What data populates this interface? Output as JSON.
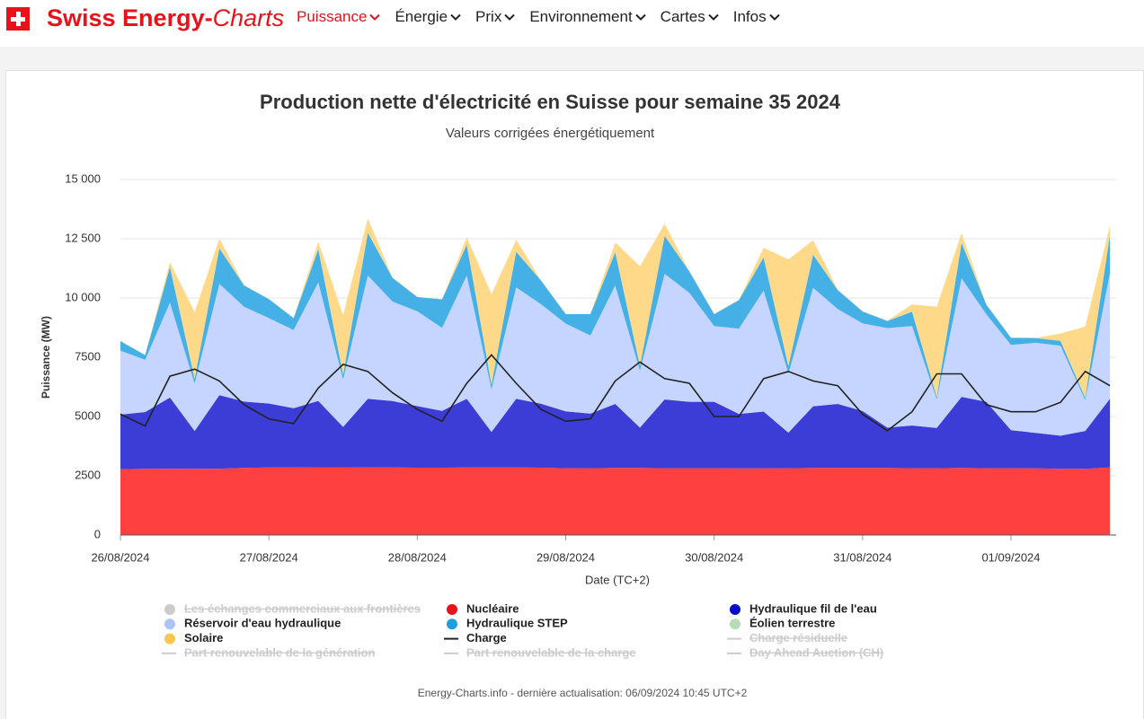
{
  "nav": {
    "brand_main": "Swiss Energy-",
    "brand_italic": "Charts",
    "items": [
      "Puissance",
      "Énergie",
      "Prix",
      "Environnement",
      "Cartes",
      "Infos"
    ],
    "active": 0
  },
  "chart_data": {
    "type": "stacked_area",
    "title": "Production nette d'électricité en Suisse pour semaine 35 2024",
    "subtitle": "Valeurs corrigées énergétiquement",
    "x_label": "Date (TC+2)",
    "y_label": "Puissance (MW)",
    "x": [
      0,
      4,
      8,
      12,
      16,
      20,
      24,
      28,
      32,
      36,
      40,
      44,
      48,
      52,
      56,
      60,
      64,
      68,
      72,
      76,
      80,
      84,
      88,
      92,
      96,
      100,
      104,
      108,
      112,
      116,
      120,
      124,
      128,
      132,
      136,
      140,
      144,
      148,
      152,
      156,
      160
    ],
    "xlim": [
      0,
      161
    ],
    "xticks": [
      {
        "value": 0,
        "label": "26/08/2024"
      },
      {
        "value": 24,
        "label": "27/08/2024"
      },
      {
        "value": 48,
        "label": "28/08/2024"
      },
      {
        "value": 72,
        "label": "29/08/2024"
      },
      {
        "value": 96,
        "label": "30/08/2024"
      },
      {
        "value": 120,
        "label": "31/08/2024"
      },
      {
        "value": 144,
        "label": "01/09/2024"
      }
    ],
    "ylim": [
      0,
      15000
    ],
    "yticks": [
      0,
      2500,
      5000,
      7500,
      {
        "value": 10000,
        "label": "10 000"
      },
      {
        "value": 12500,
        "label": "12 500"
      },
      {
        "value": 15000,
        "label": "15 000"
      }
    ],
    "grid": true,
    "series": [
      {
        "name": "Nucléaire",
        "color": "#ff4040",
        "legend_color": "#e8131a",
        "values": [
          2780,
          2790,
          2800,
          2790,
          2800,
          2830,
          2850,
          2850,
          2860,
          2860,
          2850,
          2850,
          2840,
          2840,
          2850,
          2850,
          2850,
          2840,
          2820,
          2820,
          2830,
          2830,
          2820,
          2820,
          2820,
          2810,
          2810,
          2820,
          2830,
          2830,
          2830,
          2830,
          2820,
          2820,
          2830,
          2820,
          2820,
          2810,
          2790,
          2790,
          2850
        ]
      },
      {
        "name": "Hydraulique fil de l'eau",
        "color": "#3c3cd6",
        "legend_color": "#0a0acb",
        "values": [
          2300,
          2400,
          3000,
          1600,
          3100,
          2800,
          2700,
          2500,
          2800,
          1700,
          2900,
          2800,
          2600,
          2400,
          2900,
          1500,
          2900,
          2700,
          2400,
          2300,
          2700,
          1700,
          2900,
          2800,
          2800,
          2300,
          2400,
          1500,
          2600,
          2700,
          2400,
          1700,
          1800,
          1700,
          3000,
          2800,
          1600,
          1500,
          1400,
          1600,
          2900
        ]
      },
      {
        "name": "Réservoir d'eau hydraulique",
        "color": "#c5d5ff",
        "legend_color": "#aec4f7",
        "values": [
          2700,
          2200,
          4000,
          2000,
          4700,
          4000,
          3600,
          3300,
          5000,
          2000,
          5200,
          4200,
          4000,
          3500,
          5200,
          1800,
          4700,
          4200,
          3700,
          3300,
          5000,
          2400,
          5300,
          4600,
          3200,
          3600,
          5100,
          2500,
          5000,
          4000,
          3700,
          4200,
          4200,
          1200,
          5000,
          3700,
          3600,
          3800,
          3800,
          1300,
          5300
        ]
      },
      {
        "name": "Hydraulique STEP",
        "color": "#45b0e6",
        "legend_color": "#1f9de0",
        "values": [
          400,
          200,
          1500,
          200,
          1500,
          900,
          800,
          500,
          1400,
          200,
          1800,
          1000,
          600,
          1200,
          1300,
          200,
          1500,
          1000,
          400,
          900,
          1400,
          200,
          1600,
          900,
          500,
          1200,
          1400,
          300,
          1400,
          800,
          500,
          300,
          600,
          100,
          1500,
          400,
          300,
          200,
          200,
          100,
          1600
        ]
      },
      {
        "name": "Éolien terrestre",
        "color": "#b6dbb6",
        "legend_color": "#b6dbb6",
        "values": [
          10,
          10,
          10,
          10,
          10,
          10,
          10,
          10,
          10,
          10,
          10,
          10,
          10,
          10,
          10,
          10,
          10,
          10,
          10,
          10,
          10,
          10,
          10,
          10,
          10,
          10,
          10,
          10,
          10,
          10,
          10,
          10,
          10,
          10,
          10,
          10,
          10,
          10,
          10,
          10,
          10
        ]
      },
      {
        "name": "Solaire",
        "color": "#ffd98a",
        "legend_color": "#f7c74f",
        "values": [
          0,
          0,
          200,
          2800,
          400,
          0,
          0,
          0,
          300,
          2500,
          600,
          0,
          0,
          0,
          300,
          3800,
          500,
          0,
          0,
          0,
          400,
          4200,
          500,
          0,
          0,
          0,
          400,
          4500,
          600,
          0,
          0,
          0,
          300,
          3800,
          400,
          0,
          0,
          0,
          300,
          3000,
          400
        ]
      }
    ],
    "line_series": [
      {
        "name": "Charge",
        "color": "#222222",
        "values": [
          5100,
          4600,
          6700,
          7000,
          6500,
          5500,
          4900,
          4700,
          6200,
          7200,
          6900,
          6000,
          5300,
          4800,
          6400,
          7600,
          6400,
          5300,
          4800,
          4900,
          6500,
          7300,
          6600,
          6400,
          5000,
          5000,
          6600,
          6900,
          6500,
          6300,
          5100,
          4400,
          5200,
          6800,
          6800,
          5500,
          5200,
          5200,
          5600,
          6900,
          6300
        ]
      }
    ],
    "hidden_series": [
      {
        "name": "Les échanges commerciaux aux frontières",
        "marker": "circle"
      },
      {
        "name": "Charge résiduelle",
        "marker": "line"
      },
      {
        "name": "Part renouvelable de la génération",
        "marker": "line"
      },
      {
        "name": "Part renouvelable de la charge",
        "marker": "line"
      },
      {
        "name": "Day Ahead Auction (CH)",
        "marker": "line"
      }
    ],
    "footer": "Energy-Charts.info - dernière actualisation: 06/09/2024 10:45 UTC+2"
  }
}
